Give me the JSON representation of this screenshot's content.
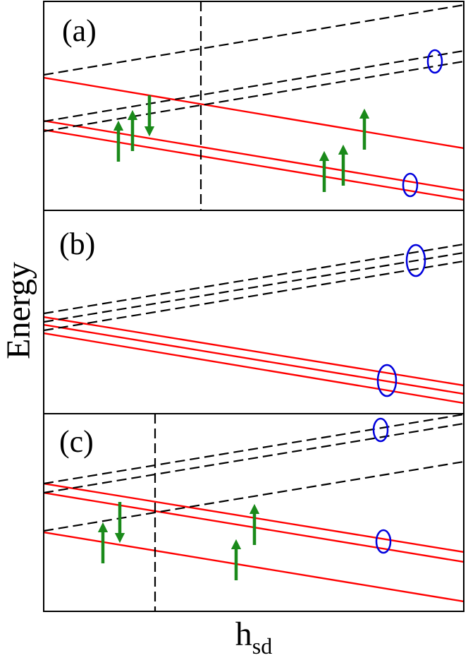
{
  "figure": {
    "y_axis_label": "Energy",
    "x_axis_label_main": "h",
    "x_axis_label_sub": "sd",
    "colors": {
      "solid_line": "#ff0000",
      "dashed_line": "#000000",
      "arrow": "#1a8a1a",
      "circle": "#0000dd",
      "frame": "#000000"
    },
    "panels": [
      {
        "label": "(a)"
      },
      {
        "label": "(b)"
      },
      {
        "label": "(c)"
      }
    ]
  }
}
